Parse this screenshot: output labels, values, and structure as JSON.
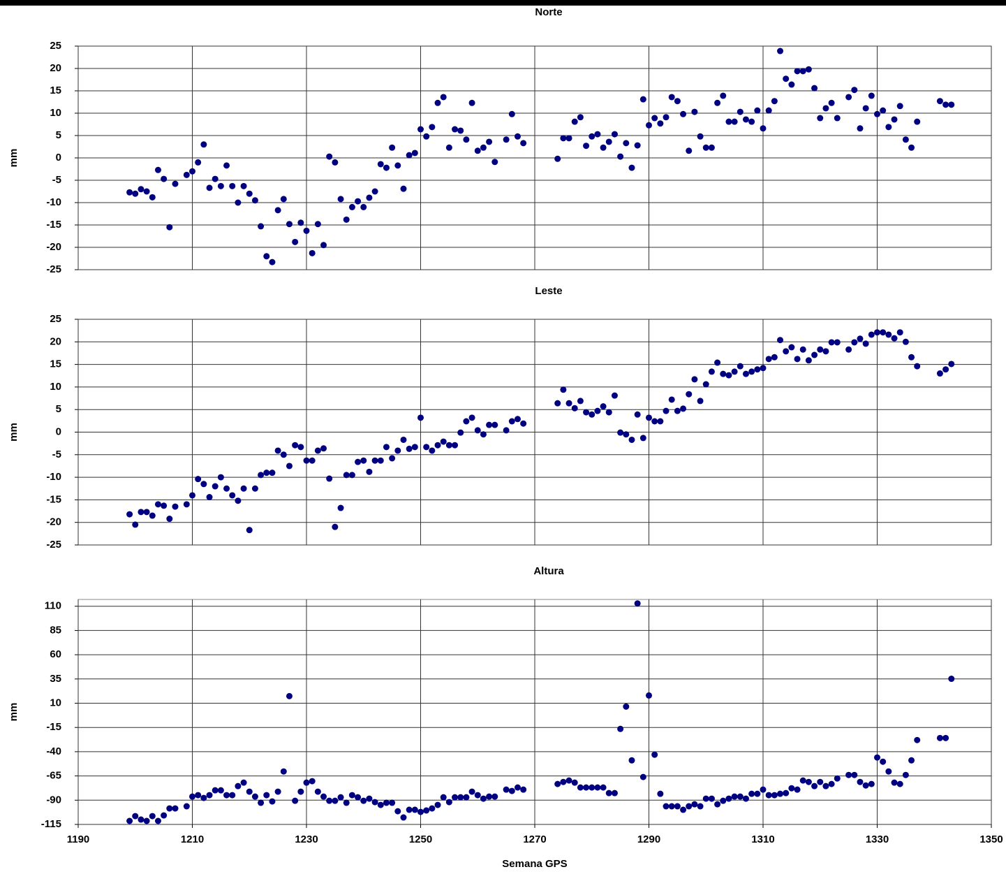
{
  "chart_data": [
    {
      "type": "scatter",
      "title": "Norte",
      "ylabel": "mm",
      "color": "#000080",
      "grid": true,
      "xlim": [
        1190,
        1350
      ],
      "xticks": [
        1190,
        1210,
        1230,
        1250,
        1270,
        1290,
        1310,
        1330,
        1350
      ],
      "ylim": [
        -25,
        25
      ],
      "yticks": [
        -25,
        -20,
        -15,
        -10,
        -5,
        0,
        5,
        10,
        15,
        20,
        25
      ],
      "x": [
        1199,
        1200,
        1201,
        1202,
        1203,
        1204,
        1205,
        1206,
        1207,
        1209,
        1210,
        1211,
        1212,
        1213,
        1214,
        1215,
        1216,
        1217,
        1218,
        1219,
        1220,
        1221,
        1222,
        1223,
        1224,
        1225,
        1226,
        1227,
        1228,
        1229,
        1230,
        1231,
        1232,
        1233,
        1234,
        1235,
        1236,
        1237,
        1238,
        1239,
        1240,
        1241,
        1242,
        1243,
        1244,
        1245,
        1246,
        1247,
        1248,
        1249,
        1250,
        1251,
        1252,
        1253,
        1254,
        1255,
        1256,
        1257,
        1258,
        1259,
        1260,
        1261,
        1262,
        1263,
        1265,
        1266,
        1267,
        1268,
        1274,
        1275,
        1276,
        1277,
        1278,
        1279,
        1280,
        1281,
        1282,
        1283,
        1284,
        1285,
        1286,
        1287,
        1288,
        1289,
        1290,
        1291,
        1292,
        1293,
        1294,
        1295,
        1296,
        1297,
        1298,
        1299,
        1300,
        1301,
        1302,
        1303,
        1304,
        1305,
        1306,
        1307,
        1308,
        1309,
        1310,
        1311,
        1312,
        1313,
        1314,
        1315,
        1316,
        1317,
        1318,
        1319,
        1320,
        1321,
        1322,
        1323,
        1325,
        1326,
        1327,
        1328,
        1329,
        1330,
        1331,
        1332,
        1333,
        1334,
        1335,
        1336,
        1337,
        1341,
        1342,
        1343
      ],
      "values": [
        -7.7,
        -8,
        -7,
        -7.5,
        -8.8,
        -2.7,
        -4.7,
        -15.5,
        -5.8,
        -3.8,
        -3,
        -1,
        3,
        -6.7,
        -4.7,
        -6.3,
        -1.7,
        -6.3,
        -10,
        -6.3,
        -8,
        -9.5,
        -15.3,
        -22,
        -23.3,
        -11.7,
        -9.2,
        -14.8,
        -18.8,
        -14.5,
        -16.3,
        -21.3,
        -14.8,
        -19.5,
        0.3,
        -1,
        -9.2,
        -13.8,
        -11,
        -9.7,
        -11,
        -8.9,
        -7.5,
        -1.4,
        -2.2,
        2.3,
        -1.7,
        -6.9,
        0.6,
        1.1,
        6.4,
        4.8,
        6.9,
        12.3,
        13.6,
        2.3,
        6.4,
        6.1,
        4.1,
        12.3,
        1.6,
        2.3,
        3.6,
        -0.9,
        4.1,
        9.8,
        4.8,
        3.3,
        -0.2,
        4.4,
        4.4,
        8.1,
        9.1,
        2.7,
        4.8,
        5.3,
        2.3,
        3.6,
        5.3,
        0.3,
        3.3,
        -2.2,
        2.8,
        13.1,
        7.3,
        8.9,
        7.7,
        9.1,
        13.6,
        12.7,
        9.8,
        1.6,
        10.3,
        4.8,
        2.3,
        2.3,
        12.3,
        13.9,
        8.1,
        8.1,
        10.3,
        8.6,
        8.1,
        10.6,
        6.6,
        10.6,
        12.7,
        23.9,
        17.7,
        16.4,
        19.4,
        19.4,
        19.8,
        15.6,
        8.9,
        11.1,
        12.3,
        8.9,
        13.6,
        15.2,
        6.6,
        11.1,
        13.9,
        9.8,
        10.6,
        6.9,
        8.6,
        11.6,
        4.1,
        2.3,
        8.1,
        12.7,
        11.9,
        11.9
      ]
    },
    {
      "type": "scatter",
      "title": "Leste",
      "ylabel": "mm",
      "color": "#000080",
      "grid": true,
      "xlim": [
        1190,
        1350
      ],
      "xticks": [
        1190,
        1210,
        1230,
        1250,
        1270,
        1290,
        1310,
        1330,
        1350
      ],
      "ylim": [
        -25,
        25
      ],
      "yticks": [
        -25,
        -20,
        -15,
        -10,
        -5,
        0,
        5,
        10,
        15,
        20,
        25
      ],
      "x": [
        1199,
        1200,
        1201,
        1202,
        1203,
        1204,
        1205,
        1206,
        1207,
        1209,
        1210,
        1211,
        1212,
        1213,
        1214,
        1215,
        1216,
        1217,
        1218,
        1219,
        1220,
        1221,
        1222,
        1223,
        1224,
        1225,
        1226,
        1227,
        1228,
        1229,
        1230,
        1231,
        1232,
        1233,
        1234,
        1235,
        1236,
        1237,
        1238,
        1239,
        1240,
        1241,
        1242,
        1243,
        1244,
        1245,
        1246,
        1247,
        1248,
        1249,
        1250,
        1251,
        1252,
        1253,
        1254,
        1255,
        1256,
        1257,
        1258,
        1259,
        1260,
        1261,
        1262,
        1263,
        1265,
        1266,
        1267,
        1268,
        1274,
        1275,
        1276,
        1277,
        1278,
        1279,
        1280,
        1281,
        1282,
        1283,
        1284,
        1285,
        1286,
        1287,
        1288,
        1289,
        1290,
        1291,
        1292,
        1293,
        1294,
        1295,
        1296,
        1297,
        1298,
        1299,
        1300,
        1301,
        1302,
        1303,
        1304,
        1305,
        1306,
        1307,
        1308,
        1309,
        1310,
        1311,
        1312,
        1313,
        1314,
        1315,
        1316,
        1317,
        1318,
        1319,
        1320,
        1321,
        1322,
        1323,
        1325,
        1326,
        1327,
        1328,
        1329,
        1330,
        1331,
        1332,
        1333,
        1334,
        1335,
        1336,
        1337,
        1341,
        1342,
        1343
      ],
      "values": [
        -18.2,
        -20.5,
        -17.7,
        -17.7,
        -18.5,
        -16,
        -16.3,
        -19.2,
        -16.5,
        -16,
        -14,
        -10.4,
        -11.5,
        -14.4,
        -12,
        -10,
        -12.5,
        -14,
        -15.2,
        -12.5,
        -21.7,
        -12.5,
        -9.5,
        -9,
        -9,
        -4.1,
        -5,
        -7.5,
        -2.9,
        -3.3,
        -6.3,
        -6.3,
        -4.1,
        -3.6,
        -10.3,
        -21,
        -16.8,
        -9.5,
        -9.5,
        -6.6,
        -6.3,
        -8.8,
        -6.3,
        -6.3,
        -3.3,
        -5.8,
        -4.1,
        -1.7,
        -3.7,
        -3.3,
        3.2,
        -3.3,
        -4.1,
        -2.9,
        -2.1,
        -2.9,
        -2.9,
        -0.1,
        2.4,
        3.2,
        0.4,
        -0.5,
        1.6,
        1.6,
        0.4,
        2.4,
        2.9,
        1.9,
        6.4,
        9.4,
        6.4,
        5.3,
        6.9,
        4.4,
        3.9,
        4.7,
        5.7,
        4.4,
        8.1,
        -0.1,
        -0.5,
        -1.7,
        3.9,
        -1.3,
        3.2,
        2.4,
        2.4,
        4.7,
        7.2,
        4.7,
        5.2,
        8.4,
        11.7,
        6.9,
        10.6,
        13.4,
        15.4,
        12.9,
        12.6,
        13.4,
        14.6,
        12.9,
        13.4,
        13.9,
        14.2,
        16.2,
        16.6,
        20.4,
        17.9,
        18.8,
        16.2,
        18.3,
        15.9,
        17.1,
        18.3,
        17.9,
        19.9,
        19.9,
        18.3,
        19.9,
        20.7,
        19.6,
        21.6,
        22.1,
        22.1,
        21.6,
        20.8,
        22.1,
        20,
        16.6,
        14.6,
        13,
        13.9,
        15.1
      ]
    },
    {
      "type": "scatter",
      "title": "Altura",
      "ylabel": "mm",
      "xlabel": "Semana GPS",
      "color": "#000080",
      "grid": true,
      "xlim": [
        1190,
        1350
      ],
      "xticks": [
        1190,
        1210,
        1230,
        1250,
        1270,
        1290,
        1310,
        1330,
        1350
      ],
      "ylim": [
        -115,
        117
      ],
      "yticks": [
        -115,
        -90,
        -65,
        -40,
        -15,
        10,
        35,
        60,
        85,
        110
      ],
      "x": [
        1199,
        1200,
        1201,
        1202,
        1203,
        1204,
        1205,
        1206,
        1207,
        1209,
        1210,
        1211,
        1212,
        1213,
        1214,
        1215,
        1216,
        1217,
        1218,
        1219,
        1220,
        1221,
        1222,
        1223,
        1224,
        1225,
        1226,
        1227,
        1228,
        1229,
        1230,
        1231,
        1232,
        1233,
        1234,
        1235,
        1236,
        1237,
        1238,
        1239,
        1240,
        1241,
        1242,
        1243,
        1244,
        1245,
        1246,
        1247,
        1248,
        1249,
        1250,
        1251,
        1252,
        1253,
        1254,
        1255,
        1256,
        1257,
        1258,
        1259,
        1260,
        1261,
        1262,
        1263,
        1265,
        1266,
        1267,
        1268,
        1274,
        1275,
        1276,
        1277,
        1278,
        1279,
        1280,
        1281,
        1282,
        1283,
        1284,
        1285,
        1286,
        1287,
        1288,
        1289,
        1290,
        1291,
        1292,
        1293,
        1294,
        1295,
        1296,
        1297,
        1298,
        1299,
        1300,
        1301,
        1302,
        1303,
        1304,
        1305,
        1306,
        1307,
        1308,
        1309,
        1310,
        1311,
        1312,
        1313,
        1314,
        1315,
        1316,
        1317,
        1318,
        1319,
        1320,
        1321,
        1322,
        1323,
        1325,
        1326,
        1327,
        1328,
        1329,
        1330,
        1331,
        1332,
        1333,
        1334,
        1335,
        1336,
        1337,
        1341,
        1342,
        1343
      ],
      "values": [
        -111.4,
        -106.4,
        -110,
        -111.4,
        -106.4,
        -111.4,
        -105.7,
        -98.5,
        -98.5,
        -96.3,
        -86.3,
        -84.8,
        -87.7,
        -84.8,
        -79.8,
        -79.8,
        -84.8,
        -84.8,
        -75.5,
        -71.9,
        -81.2,
        -86.3,
        -92.7,
        -84.8,
        -91.3,
        -81.2,
        -60.4,
        17.3,
        -90.6,
        -81.2,
        -71.9,
        -70.4,
        -81.2,
        -86.3,
        -90.6,
        -90.6,
        -87,
        -92.7,
        -84.8,
        -87,
        -90.6,
        -88.4,
        -92,
        -94.9,
        -92.7,
        -92.7,
        -101.4,
        -107.8,
        -99.9,
        -99.9,
        -102.1,
        -100.6,
        -98.5,
        -94.9,
        -87,
        -92,
        -87,
        -87,
        -87,
        -81.2,
        -84.8,
        -88.4,
        -86.3,
        -86.3,
        -79.1,
        -80.5,
        -76.9,
        -79.1,
        -73.3,
        -71.2,
        -69.7,
        -71.9,
        -76.9,
        -76.9,
        -76.9,
        -76.9,
        -76.9,
        -82.7,
        -82.7,
        -16.5,
        6.5,
        -48.9,
        112.9,
        -66.1,
        18,
        -43.1,
        -83.4,
        -96.3,
        -96.3,
        -96.3,
        -99.9,
        -96.3,
        -94.2,
        -96.3,
        -88.4,
        -88.4,
        -94.2,
        -90.6,
        -88.4,
        -86.3,
        -86.3,
        -88.4,
        -83.4,
        -83.4,
        -79.1,
        -84.8,
        -84.8,
        -83.4,
        -82.7,
        -77.7,
        -79.1,
        -69.7,
        -71.2,
        -75.5,
        -71.2,
        -75.5,
        -73.3,
        -67.6,
        -64,
        -64,
        -71.2,
        -74.8,
        -73.3,
        -46,
        -50.3,
        -60.4,
        -71.9,
        -73.3,
        -64,
        -48.9,
        -28,
        -25.9,
        -25.9,
        35.2
      ]
    }
  ]
}
